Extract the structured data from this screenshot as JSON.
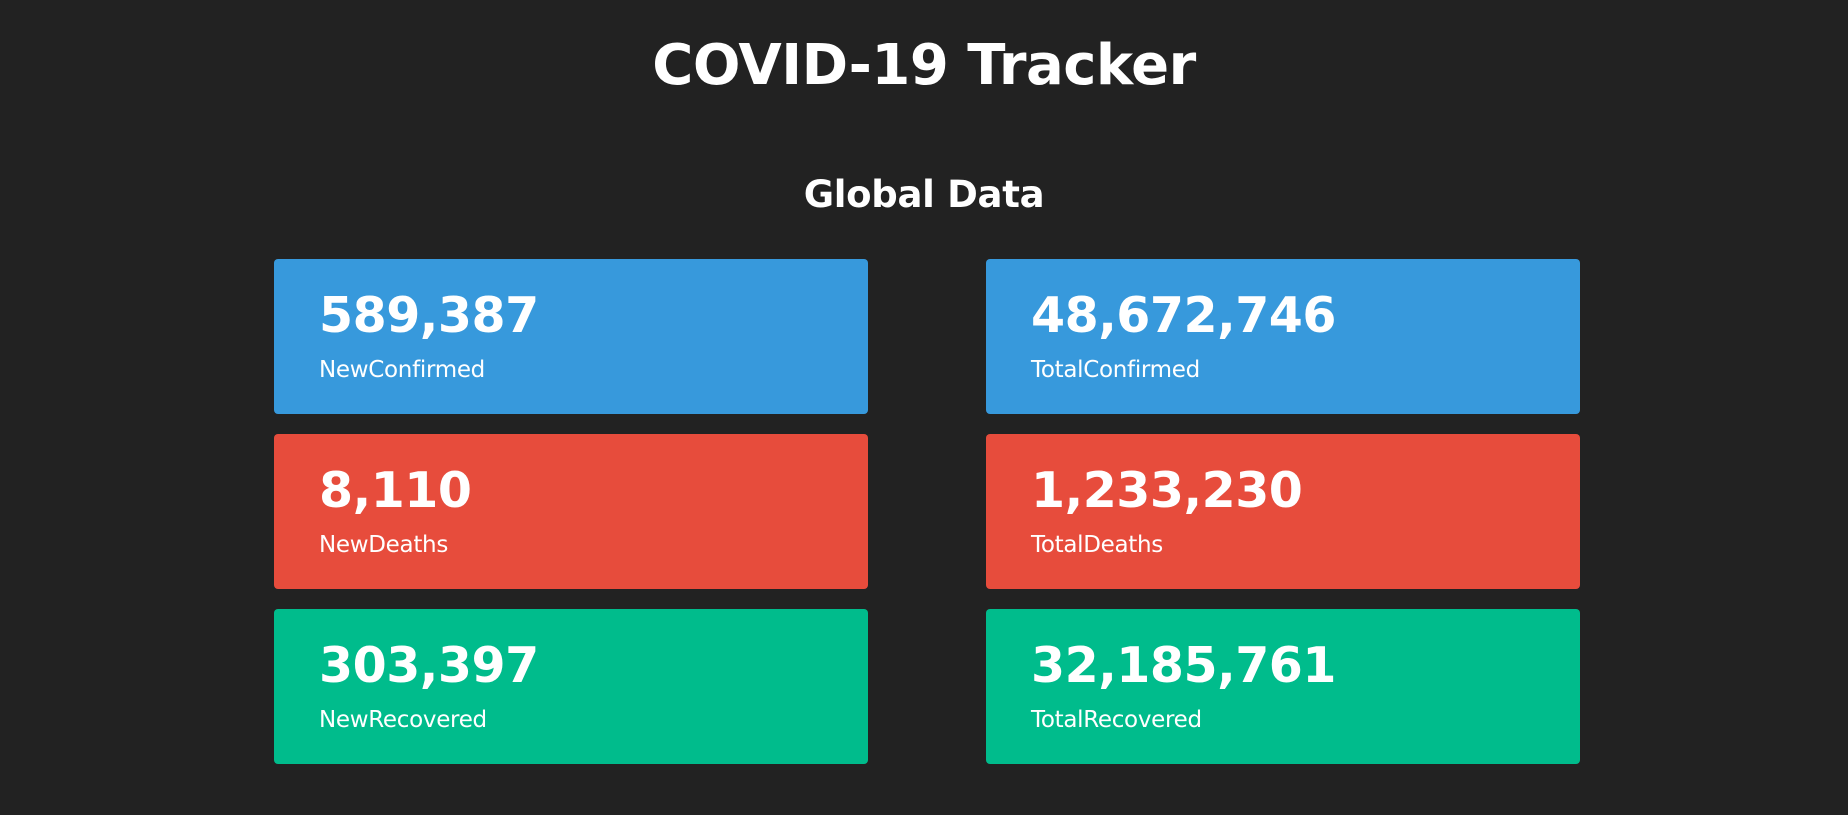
{
  "header": {
    "title": "COVID-19 Tracker"
  },
  "global_data": {
    "title": "Global Data",
    "cards": [
      {
        "value": "589,387",
        "label": "NewConfirmed",
        "color": "#3799DC"
      },
      {
        "value": "48,672,746",
        "label": "TotalConfirmed",
        "color": "#3799DC"
      },
      {
        "value": "8,110",
        "label": "NewDeaths",
        "color": "#E74C3C"
      },
      {
        "value": "1,233,230",
        "label": "TotalDeaths",
        "color": "#E74C3C"
      },
      {
        "value": "303,397",
        "label": "NewRecovered",
        "color": "#00BC8C"
      },
      {
        "value": "32,185,761",
        "label": "TotalRecovered",
        "color": "#00BC8C"
      }
    ]
  },
  "theme": {
    "background": "#222222",
    "text": "#FFFFFF"
  }
}
